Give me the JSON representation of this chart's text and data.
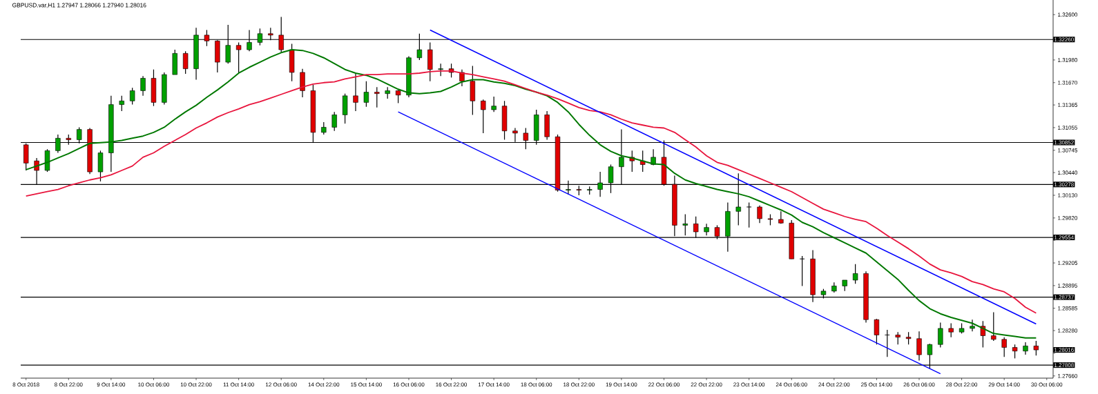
{
  "chart_data": {
    "type": "candlestick",
    "title": "GBPUSD.var,H1 1.27947 1.28066 1.27940 1.28016",
    "categories": [
      "8 Oct 2018",
      null,
      null,
      null,
      "8 Oct 22:00",
      null,
      null,
      null,
      "9 Oct 14:00",
      null,
      null,
      null,
      "10 Oct 06:00",
      null,
      null,
      null,
      "10 Oct 22:00",
      null,
      null,
      null,
      "11 Oct 14:00",
      null,
      null,
      null,
      "12 Oct 06:00",
      null,
      null,
      null,
      "14 Oct 22:00",
      null,
      null,
      null,
      "15 Oct 14:00",
      null,
      null,
      null,
      "16 Oct 06:00",
      null,
      null,
      null,
      "16 Oct 22:00",
      null,
      null,
      null,
      "17 Oct 14:00",
      null,
      null,
      null,
      "18 Oct 06:00",
      null,
      null,
      null,
      "18 Oct 22:00",
      null,
      null,
      null,
      "19 Oct 14:00",
      null,
      null,
      null,
      "22 Oct 06:00",
      null,
      null,
      null,
      "22 Oct 22:00",
      null,
      null,
      null,
      "23 Oct 14:00",
      null,
      null,
      null,
      "24 Oct 06:00",
      null,
      null,
      null,
      "24 Oct 22:00",
      null,
      null,
      null,
      "25 Oct 14:00",
      null,
      null,
      null,
      "26 Oct 06:00",
      null,
      null,
      null,
      "28 Oct 22:00",
      null,
      null,
      null,
      "29 Oct 14:00",
      null,
      null,
      null,
      "30 Oct 06:00"
    ],
    "ohlc": [
      [
        1.3082,
        1.3084,
        1.3047,
        1.3057
      ],
      [
        1.306,
        1.3064,
        1.3028,
        1.3047
      ],
      [
        1.3047,
        1.3076,
        1.3045,
        1.3074
      ],
      [
        1.3074,
        1.3096,
        1.3071,
        1.3091
      ],
      [
        1.3091,
        1.3096,
        1.3082,
        1.3089
      ],
      [
        1.3089,
        1.3106,
        1.3084,
        1.3103
      ],
      [
        1.3103,
        1.3105,
        1.3042,
        1.3045
      ],
      [
        1.3045,
        1.3074,
        1.3032,
        1.3071
      ],
      [
        1.3071,
        1.3149,
        1.3045,
        1.3137
      ],
      [
        1.3137,
        1.3149,
        1.3128,
        1.3142
      ],
      [
        1.3142,
        1.316,
        1.3137,
        1.3156
      ],
      [
        1.3156,
        1.3176,
        1.3149,
        1.3173
      ],
      [
        1.3173,
        1.3185,
        1.3135,
        1.314
      ],
      [
        1.314,
        1.3181,
        1.3137,
        1.3178
      ],
      [
        1.3178,
        1.3212,
        1.3178,
        1.3207
      ],
      [
        1.3207,
        1.321,
        1.3179,
        1.3186
      ],
      [
        1.3186,
        1.3242,
        1.3171,
        1.3232
      ],
      [
        1.3232,
        1.3239,
        1.3217,
        1.3224
      ],
      [
        1.3224,
        1.3225,
        1.3181,
        1.3195
      ],
      [
        1.3195,
        1.3246,
        1.3193,
        1.3218
      ],
      [
        1.3218,
        1.3222,
        1.3181,
        1.3212
      ],
      [
        1.3212,
        1.3239,
        1.321,
        1.3222
      ],
      [
        1.3222,
        1.3241,
        1.3218,
        1.3234
      ],
      [
        1.3234,
        1.3242,
        1.3225,
        1.3232
      ],
      [
        1.3232,
        1.3257,
        1.3208,
        1.3212
      ],
      [
        1.3212,
        1.322,
        1.3169,
        1.3181
      ],
      [
        1.3181,
        1.3186,
        1.3147,
        1.3156
      ],
      [
        1.3156,
        1.3164,
        1.3085,
        1.3099
      ],
      [
        1.3099,
        1.3113,
        1.3096,
        1.3106
      ],
      [
        1.3106,
        1.3127,
        1.3101,
        1.3123
      ],
      [
        1.3123,
        1.3152,
        1.3111,
        1.3149
      ],
      [
        1.3149,
        1.3179,
        1.3128,
        1.314
      ],
      [
        1.314,
        1.3169,
        1.3134,
        1.3154
      ],
      [
        1.3154,
        1.3161,
        1.3133,
        1.3152
      ],
      [
        1.3152,
        1.3161,
        1.3145,
        1.3156
      ],
      [
        1.3156,
        1.3157,
        1.3139,
        1.315
      ],
      [
        1.315,
        1.3203,
        1.3147,
        1.3201
      ],
      [
        1.3201,
        1.3234,
        1.3198,
        1.3212
      ],
      [
        1.3212,
        1.3222,
        1.3169,
        1.3185
      ],
      [
        1.3185,
        1.3193,
        1.3176,
        1.3186
      ],
      [
        1.3186,
        1.3193,
        1.3174,
        1.3181
      ],
      [
        1.3181,
        1.3185,
        1.3162,
        1.3169
      ],
      [
        1.3169,
        1.319,
        1.3123,
        1.3142
      ],
      [
        1.3142,
        1.3144,
        1.3098,
        1.313
      ],
      [
        1.313,
        1.3148,
        1.3127,
        1.3135
      ],
      [
        1.3135,
        1.3142,
        1.3089,
        1.3101
      ],
      [
        1.3101,
        1.3105,
        1.3086,
        1.3098
      ],
      [
        1.3098,
        1.3105,
        1.3076,
        1.3088
      ],
      [
        1.3088,
        1.313,
        1.3082,
        1.3123
      ],
      [
        1.3123,
        1.3128,
        1.3089,
        1.3093
      ],
      [
        1.3093,
        1.3096,
        1.3018,
        1.302
      ],
      [
        1.302,
        1.3033,
        1.3014,
        1.3021
      ],
      [
        1.3021,
        1.3026,
        1.3013,
        1.302
      ],
      [
        1.302,
        1.3025,
        1.3014,
        1.3021
      ],
      [
        1.3021,
        1.3045,
        1.3011,
        1.303
      ],
      [
        1.303,
        1.3055,
        1.3016,
        1.3052
      ],
      [
        1.3052,
        1.3103,
        1.3028,
        1.3065
      ],
      [
        1.3065,
        1.3074,
        1.3045,
        1.306
      ],
      [
        1.306,
        1.3074,
        1.3045,
        1.3055
      ],
      [
        1.3055,
        1.3076,
        1.3054,
        1.3065
      ],
      [
        1.3065,
        1.3088,
        1.3026,
        1.3028
      ],
      [
        1.3028,
        1.304,
        1.2957,
        1.2972
      ],
      [
        1.2972,
        1.2987,
        1.2958,
        1.2974
      ],
      [
        1.2974,
        1.2984,
        1.2955,
        1.2963
      ],
      [
        1.2963,
        1.2974,
        1.2958,
        1.2969
      ],
      [
        1.2969,
        1.2972,
        1.2953,
        1.2957
      ],
      [
        1.2957,
        1.3003,
        1.2936,
        1.2991
      ],
      [
        1.2991,
        1.3043,
        1.2972,
        1.2997
      ],
      [
        1.2997,
        1.3003,
        1.2969,
        1.2997
      ],
      [
        1.2997,
        1.2999,
        1.2975,
        1.2981
      ],
      [
        1.2981,
        1.2987,
        1.2972,
        1.298
      ],
      [
        1.298,
        1.2991,
        1.2974,
        1.2975
      ],
      [
        1.2975,
        1.2979,
        1.2926,
        1.2926
      ],
      [
        1.2926,
        1.293,
        1.2889,
        1.2926
      ],
      [
        1.2926,
        1.2938,
        1.2867,
        1.2877
      ],
      [
        1.2877,
        1.2885,
        1.2872,
        1.2882
      ],
      [
        1.2882,
        1.2894,
        1.288,
        1.2889
      ],
      [
        1.2889,
        1.2897,
        1.2882,
        1.2897
      ],
      [
        1.2897,
        1.2919,
        1.2892,
        1.2906
      ],
      [
        1.2906,
        1.2909,
        1.2839,
        1.2843
      ],
      [
        1.2843,
        1.2844,
        1.2809,
        1.2822
      ],
      [
        1.2822,
        1.2829,
        1.2792,
        1.2822
      ],
      [
        1.2822,
        1.2826,
        1.2809,
        1.2819
      ],
      [
        1.2819,
        1.2826,
        1.2809,
        1.2817
      ],
      [
        1.2817,
        1.2827,
        1.2787,
        1.2795
      ],
      [
        1.2795,
        1.281,
        1.2776,
        1.2809
      ],
      [
        1.2809,
        1.2839,
        1.2805,
        1.2831
      ],
      [
        1.2831,
        1.2838,
        1.2819,
        1.2826
      ],
      [
        1.2826,
        1.2838,
        1.2824,
        1.2831
      ],
      [
        1.2831,
        1.2843,
        1.2827,
        1.2834
      ],
      [
        1.2834,
        1.2841,
        1.2805,
        1.2821
      ],
      [
        1.2821,
        1.2853,
        1.2814,
        1.2816
      ],
      [
        1.2816,
        1.2819,
        1.2792,
        1.2805
      ],
      [
        1.2805,
        1.2809,
        1.279,
        1.28
      ],
      [
        1.28,
        1.2812,
        1.2795,
        1.2807
      ],
      [
        1.2807,
        1.2814,
        1.2794,
        1.28016
      ],
      null
    ],
    "series": [
      {
        "type": "line",
        "color": "#007800",
        "values": [
          1.3048,
          1.3053,
          1.3058,
          1.3064,
          1.307,
          1.3077,
          1.3084,
          1.3085,
          1.3086,
          1.3088,
          1.3091,
          1.3094,
          1.3099,
          1.3106,
          1.3117,
          1.3127,
          1.3136,
          1.3147,
          1.3157,
          1.3168,
          1.318,
          1.3188,
          1.3195,
          1.3202,
          1.3208,
          1.3212,
          1.3211,
          1.3207,
          1.3201,
          1.3193,
          1.3185,
          1.318,
          1.3177,
          1.3172,
          1.3165,
          1.3158,
          1.3153,
          1.3152,
          1.3153,
          1.3155,
          1.3161,
          1.3168,
          1.3171,
          1.3171,
          1.3168,
          1.3166,
          1.3163,
          1.3158,
          1.3154,
          1.3149,
          1.314,
          1.3127,
          1.311,
          1.3095,
          1.3082,
          1.3073,
          1.3067,
          1.3064,
          1.306,
          1.3056,
          1.3055,
          1.3043,
          1.3034,
          1.3029,
          1.3025,
          1.3021,
          1.3018,
          1.3015,
          1.3011,
          1.3005,
          1.2999,
          1.2993,
          1.2986,
          1.2976,
          1.297,
          1.2962,
          1.2955,
          1.2948,
          1.2941,
          1.2934,
          1.2922,
          1.291,
          1.2898,
          1.2883,
          1.2869,
          1.2858,
          1.2851,
          1.2846,
          1.2842,
          1.2838,
          1.2831,
          1.2824,
          1.2822,
          1.282,
          1.2818,
          1.2818,
          null
        ]
      },
      {
        "type": "line",
        "color": "#e8143c",
        "values": [
          1.3012,
          1.3015,
          1.3018,
          1.3021,
          1.3026,
          1.303,
          1.3034,
          1.3037,
          1.3041,
          1.3047,
          1.3053,
          1.3065,
          1.3071,
          1.308,
          1.3088,
          1.3096,
          1.3105,
          1.3112,
          1.312,
          1.3126,
          1.3131,
          1.3137,
          1.3141,
          1.3146,
          1.3151,
          1.3156,
          1.3161,
          1.3165,
          1.3167,
          1.3168,
          1.3172,
          1.3175,
          1.3178,
          1.3178,
          1.3179,
          1.3179,
          1.3179,
          1.318,
          1.3182,
          1.3183,
          1.3183,
          1.318,
          1.3178,
          1.3175,
          1.3172,
          1.3169,
          1.3164,
          1.3159,
          1.3154,
          1.315,
          1.3145,
          1.3139,
          1.3133,
          1.3129,
          1.3127,
          1.3123,
          1.3117,
          1.3112,
          1.3109,
          1.3106,
          1.3105,
          1.3099,
          1.3089,
          1.3079,
          1.3067,
          1.3058,
          1.3054,
          1.3048,
          1.3042,
          1.3036,
          1.303,
          1.3024,
          1.3018,
          1.301,
          1.3002,
          1.2994,
          1.2989,
          1.2984,
          1.298,
          1.2977,
          1.2968,
          1.2958,
          1.2949,
          1.294,
          1.293,
          1.2919,
          1.2911,
          1.2907,
          1.2902,
          1.2895,
          1.2891,
          1.2885,
          1.2881,
          1.2872,
          1.286,
          1.2852,
          null
        ]
      },
      {
        "type": "line",
        "color": "#0000ff",
        "values": [
          null,
          null,
          null,
          null,
          null,
          null,
          null,
          null,
          null,
          null,
          null,
          null,
          null,
          null,
          null,
          null,
          null,
          null,
          null,
          null,
          null,
          null,
          null,
          null,
          null,
          null,
          null,
          null,
          null,
          null,
          null,
          null,
          null,
          null,
          null,
          null,
          null,
          null,
          1.3239,
          null,
          null,
          null,
          null,
          null,
          null,
          null,
          null,
          null,
          null,
          null,
          null,
          null,
          null,
          null,
          null,
          null,
          null,
          null,
          null,
          null,
          null,
          null,
          null,
          null,
          null,
          null,
          null,
          null,
          null,
          null,
          null,
          null,
          null,
          null,
          null,
          null,
          null,
          null,
          null,
          null,
          null,
          null,
          null,
          null,
          null,
          null,
          null,
          null,
          null,
          null,
          null,
          null,
          null,
          null,
          null,
          1.2837,
          null
        ]
      },
      {
        "type": "line",
        "color": "#0000ff",
        "values": [
          null,
          null,
          null,
          null,
          null,
          null,
          null,
          null,
          null,
          null,
          null,
          null,
          null,
          null,
          null,
          null,
          null,
          null,
          null,
          null,
          null,
          null,
          null,
          null,
          null,
          null,
          null,
          null,
          null,
          null,
          null,
          null,
          null,
          null,
          null,
          1.3127,
          null,
          null,
          null,
          null,
          null,
          null,
          null,
          null,
          null,
          null,
          null,
          null,
          null,
          null,
          null,
          null,
          null,
          null,
          null,
          null,
          null,
          null,
          null,
          null,
          null,
          null,
          null,
          null,
          null,
          null,
          null,
          null,
          null,
          null,
          null,
          null,
          null,
          null,
          null,
          null,
          null,
          null,
          null,
          null,
          null,
          null,
          null,
          null,
          null,
          null,
          1.2769,
          null,
          null,
          null,
          null,
          null,
          null,
          null,
          null,
          null,
          null
        ]
      }
    ],
    "ylim": [
      1.2763,
      1.328
    ],
    "yticks": [
      {
        "value": 1.326,
        "label": "1.32600"
      },
      {
        "value": 1.3198,
        "label": "1.31980"
      },
      {
        "value": 1.3167,
        "label": "1.31670"
      },
      1.31365,
      1.31055,
      1.30745,
      {
        "value": 1.3044,
        "label": "1.30440"
      },
      {
        "value": 1.3013,
        "label": "1.30130"
      },
      {
        "value": 1.2982,
        "label": "1.29820"
      },
      {
        "value": 1.29515,
        "label": null
      },
      1.29205,
      1.28895,
      1.28585,
      {
        "value": 1.2828,
        "label": "1.28280"
      },
      {
        "value": 1.2797,
        "label": null
      },
      {
        "value": 1.2766,
        "label": "1.27660"
      }
    ],
    "ref_lines": [
      {
        "axis": "y",
        "value": 1.3226,
        "label": "1.32260",
        "color": "#000000"
      },
      {
        "axis": "y",
        "value": 1.30852,
        "label": "1.30852",
        "color": "#000000"
      },
      {
        "axis": "y",
        "value": 1.30278,
        "label": "1.30278",
        "color": "#000000"
      },
      {
        "axis": "y",
        "value": 1.29554,
        "label": "1.29554",
        "color": "#000000"
      },
      {
        "axis": "y",
        "value": 1.28737,
        "label": "1.28737",
        "color": "#000000"
      },
      {
        "axis": "y",
        "value": 1.27808,
        "label": "1.27808",
        "color": "#000000"
      }
    ],
    "annotations": [
      "1.28016"
    ]
  }
}
